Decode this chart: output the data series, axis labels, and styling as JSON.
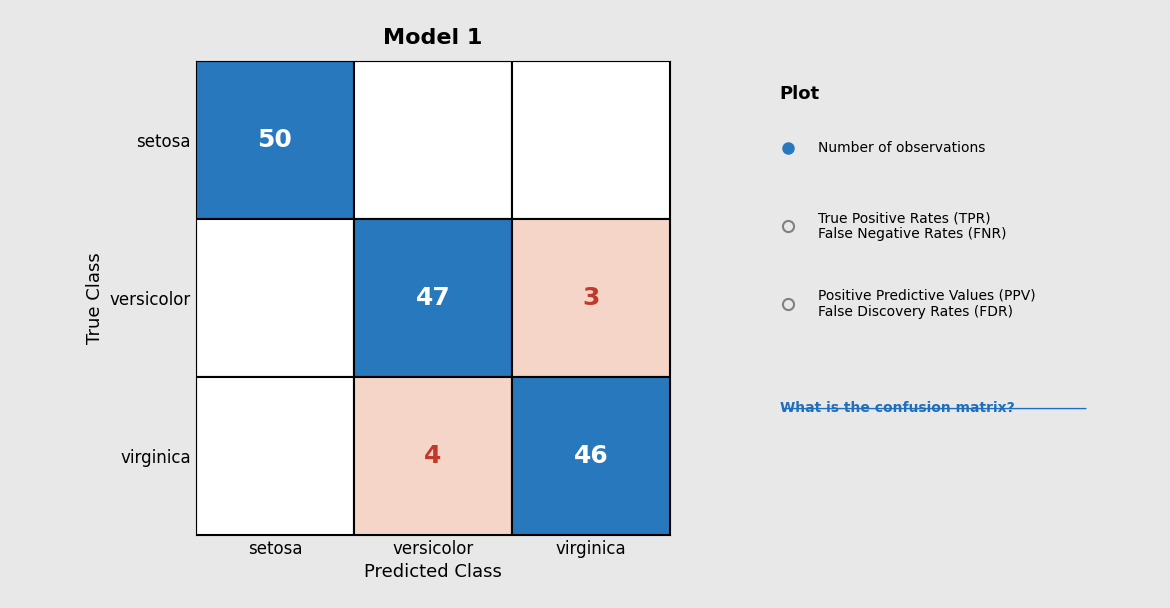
{
  "title": "Model 1",
  "matrix": [
    [
      50,
      0,
      0
    ],
    [
      0,
      47,
      3
    ],
    [
      0,
      4,
      46
    ]
  ],
  "true_labels": [
    "setosa",
    "versicolor",
    "virginica"
  ],
  "pred_labels": [
    "setosa",
    "versicolor",
    "virginica"
  ],
  "xlabel": "Predicted Class",
  "ylabel": "True Class",
  "blue_color": "#2878BE",
  "light_red_color": "#F5D5C8",
  "white_color": "#FFFFFF",
  "bg_color": "#E8E8E8",
  "text_blue_white": "#FFFFFF",
  "text_red_dark": "#C0392B",
  "title_fontsize": 16,
  "label_fontsize": 13,
  "tick_fontsize": 12,
  "value_fontsize": 18
}
